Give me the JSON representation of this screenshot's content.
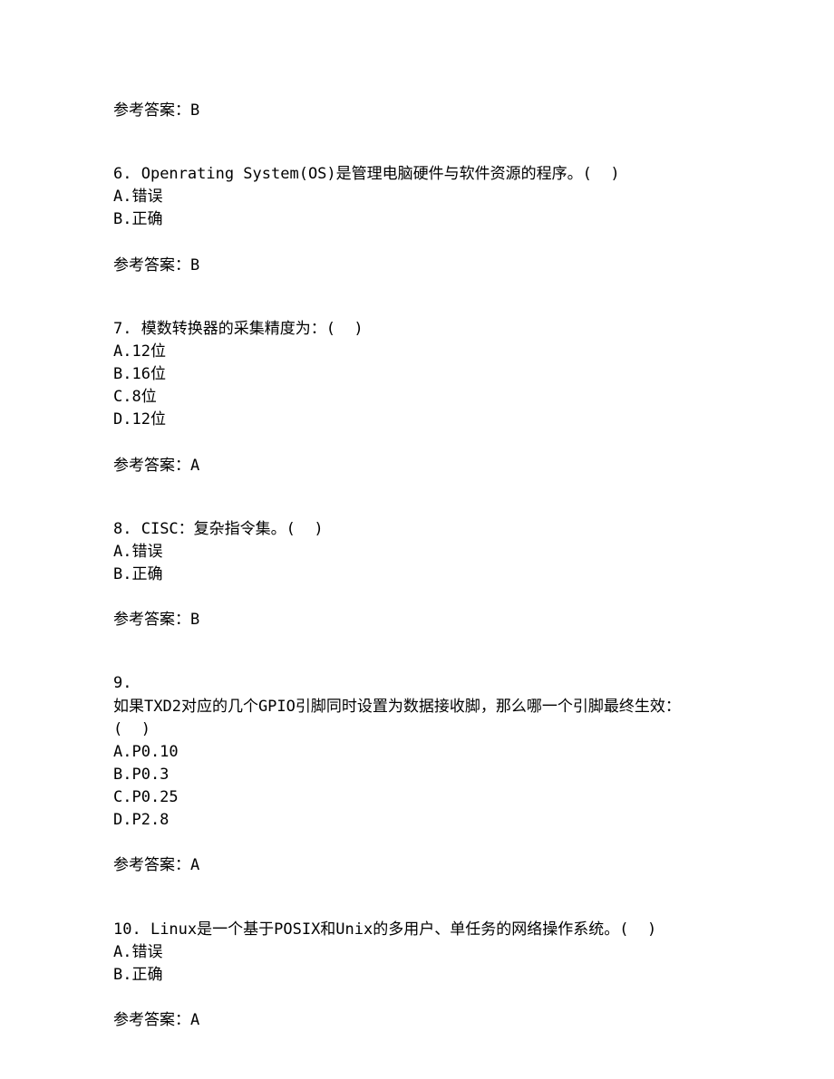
{
  "answer_label": "参考答案：",
  "top_answer": "B",
  "questions": [
    {
      "number": "6.",
      "text": " Openrating System(OS)是管理电脑硬件与软件资源的程序。(  )",
      "options": [
        "A.错误",
        "B.正确"
      ],
      "answer": "B"
    },
    {
      "number": "7.",
      "text": " 模数转换器的采集精度为：(  )",
      "options": [
        "A.12位",
        "B.16位",
        "C.8位",
        "D.12位"
      ],
      "answer": "A"
    },
    {
      "number": "8.",
      "text": " CISC：复杂指令集。(  )",
      "options": [
        "A.错误",
        "B.正确"
      ],
      "answer": "B"
    },
    {
      "number": "9.",
      "text_lines": [
        "如果TXD2对应的几个GPIO引脚同时设置为数据接收脚，那么哪一个引脚最终生效：",
        "(  )"
      ],
      "options": [
        "A.P0.10",
        "B.P0.3",
        "C.P0.25",
        "D.P2.8"
      ],
      "answer": "A"
    },
    {
      "number": "10.",
      "text": " Linux是一个基于POSIX和Unix的多用户、单任务的网络操作系统。(  )",
      "options": [
        "A.错误",
        "B.正确"
      ],
      "answer": "A"
    }
  ]
}
